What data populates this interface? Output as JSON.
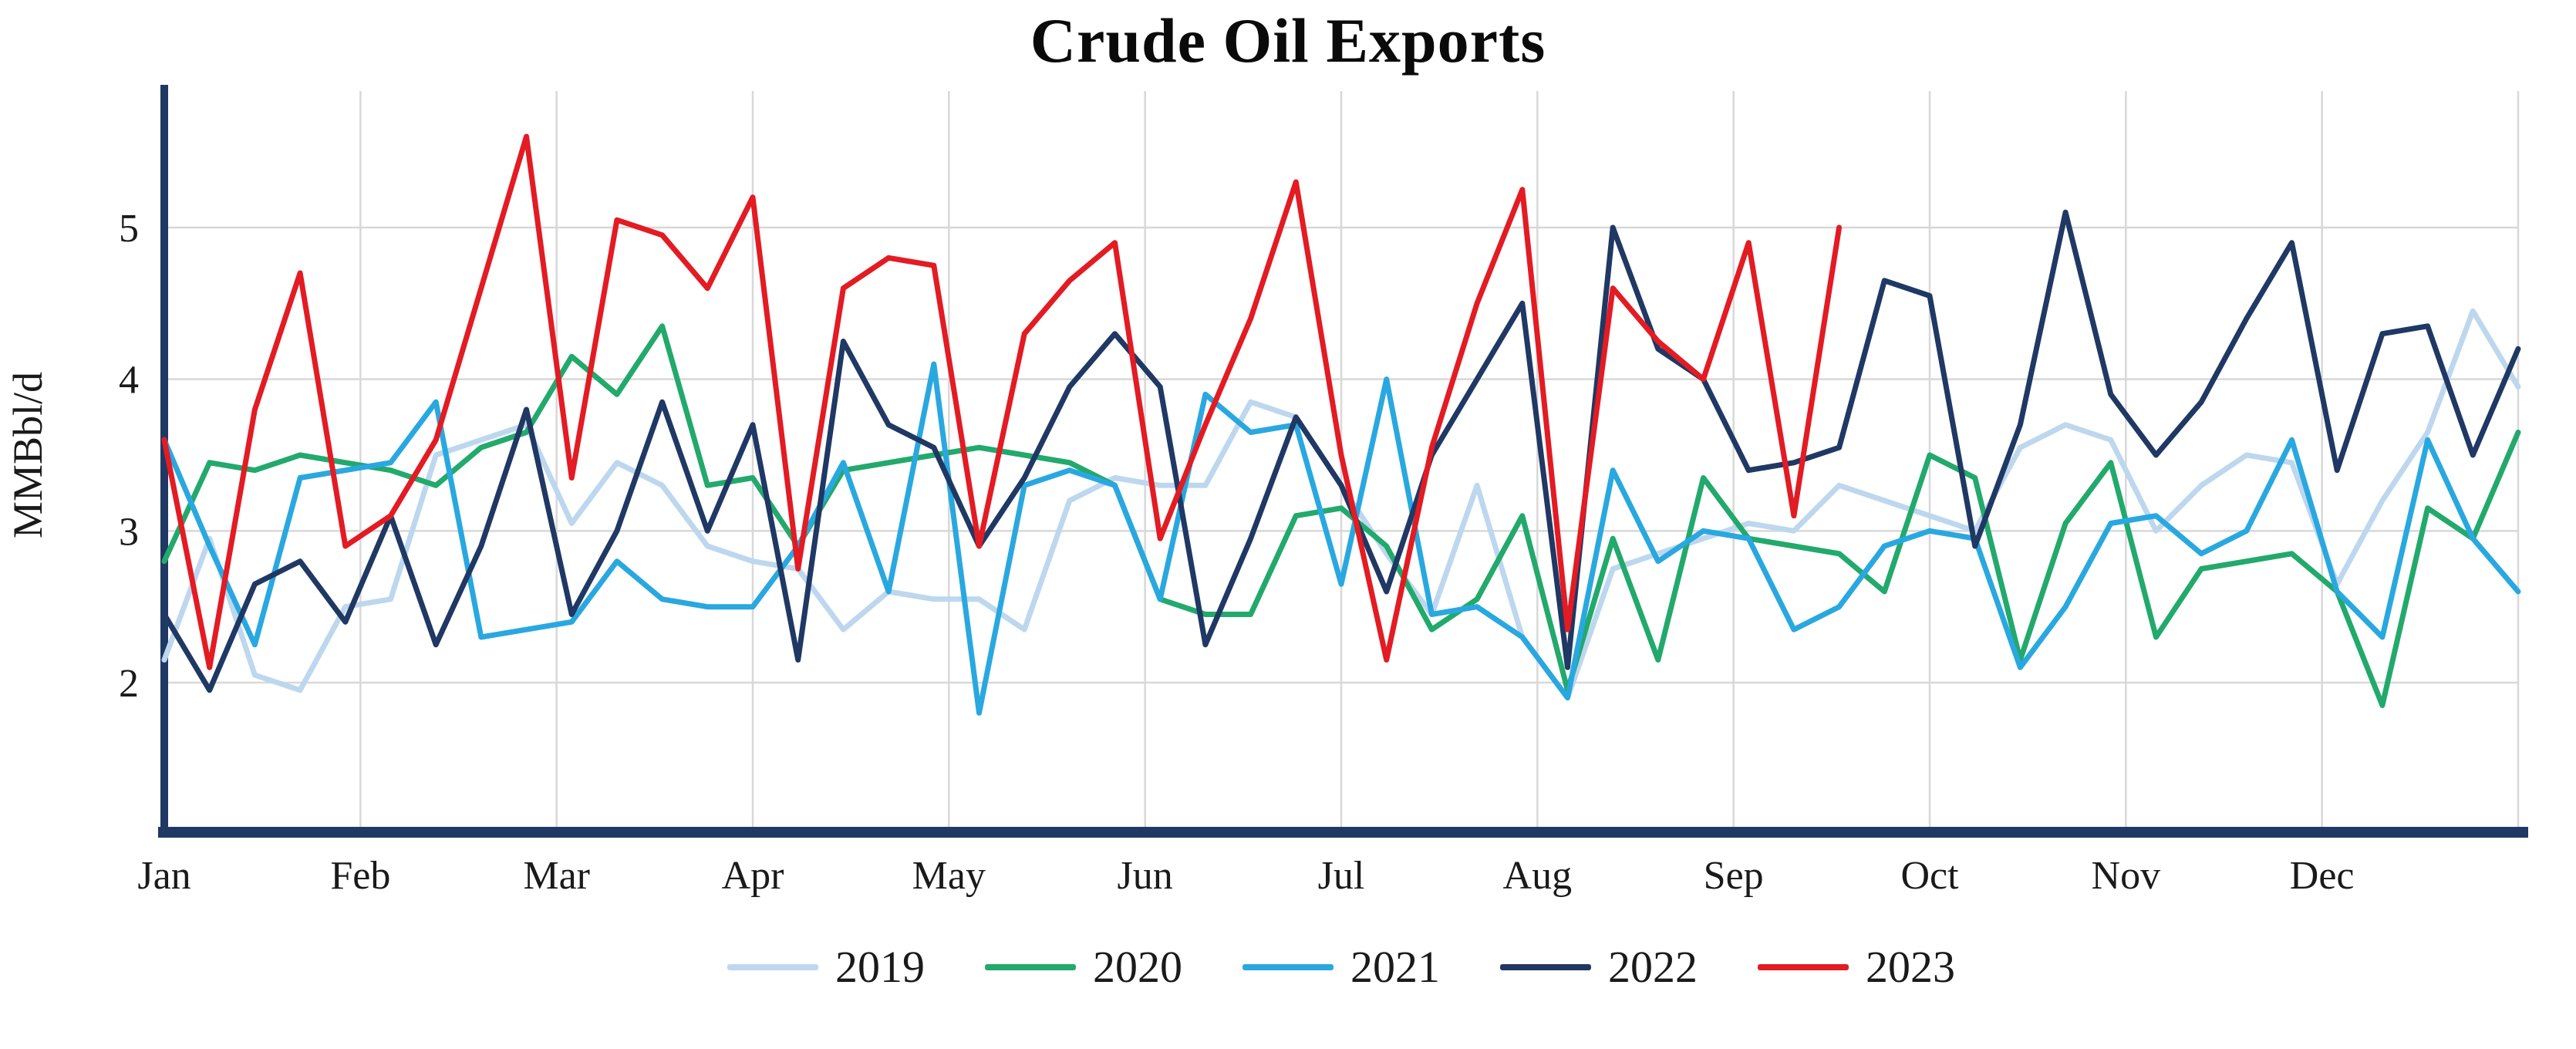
{
  "title": "Crude Oil Exports",
  "chart_data": {
    "type": "line",
    "title": "Crude Oil Exports",
    "xlabel": "",
    "ylabel": "MMBbl/d",
    "ylim": [
      1.8,
      5.9
    ],
    "yticks": [
      2,
      3,
      4,
      5
    ],
    "categories": [
      "Jan",
      "Feb",
      "Mar",
      "Apr",
      "May",
      "Jun",
      "Jul",
      "Aug",
      "Sep",
      "Oct",
      "Nov",
      "Dec"
    ],
    "x_unit": "week",
    "weeks_total": 53,
    "grid": true,
    "legend_position": "bottom",
    "axis_color": "#1f3864",
    "grid_color": "#d8d8d8",
    "series": [
      {
        "name": "2019",
        "color": "#bdd7ee",
        "values": [
          2.15,
          2.95,
          2.05,
          1.95,
          2.5,
          2.55,
          3.5,
          3.6,
          3.7,
          3.05,
          3.45,
          3.3,
          2.9,
          2.8,
          2.75,
          2.35,
          2.6,
          2.55,
          2.55,
          2.35,
          3.2,
          3.35,
          3.3,
          3.3,
          3.85,
          3.75,
          3.3,
          2.85,
          2.45,
          3.3,
          2.3,
          1.9,
          2.75,
          2.85,
          2.95,
          3.05,
          3.0,
          3.3,
          3.2,
          3.1,
          3.0,
          3.55,
          3.7,
          3.6,
          3.0,
          3.3,
          3.5,
          3.45,
          2.65,
          3.2,
          3.65,
          4.45,
          3.95
        ]
      },
      {
        "name": "2020",
        "color": "#22a96c",
        "values": [
          2.8,
          3.45,
          3.4,
          3.5,
          3.45,
          3.4,
          3.3,
          3.55,
          3.65,
          4.15,
          3.9,
          4.35,
          3.3,
          3.35,
          2.9,
          3.4,
          3.45,
          3.5,
          3.55,
          3.5,
          3.45,
          3.3,
          2.55,
          2.45,
          2.45,
          3.1,
          3.15,
          2.9,
          2.35,
          2.55,
          3.1,
          1.95,
          2.95,
          2.15,
          3.35,
          2.95,
          2.9,
          2.85,
          2.6,
          3.5,
          3.35,
          2.15,
          3.05,
          3.45,
          2.3,
          2.75,
          2.8,
          2.85,
          2.6,
          1.85,
          3.15,
          2.95,
          3.65
        ]
      },
      {
        "name": "2021",
        "color": "#29a8e0",
        "values": [
          3.6,
          2.9,
          2.25,
          3.35,
          3.4,
          3.45,
          3.85,
          2.3,
          2.35,
          2.4,
          2.8,
          2.55,
          2.5,
          2.5,
          2.9,
          3.45,
          2.6,
          4.1,
          1.8,
          3.3,
          3.4,
          3.3,
          2.55,
          3.9,
          3.65,
          3.7,
          2.65,
          4.0,
          2.45,
          2.5,
          2.3,
          1.9,
          3.4,
          2.8,
          3.0,
          2.95,
          2.35,
          2.5,
          2.9,
          3.0,
          2.95,
          2.1,
          2.5,
          3.05,
          3.1,
          2.85,
          3.0,
          3.6,
          2.6,
          2.3,
          3.6,
          2.95,
          2.6
        ]
      },
      {
        "name": "2022",
        "color": "#1f3864",
        "values": [
          2.45,
          1.95,
          2.65,
          2.8,
          2.4,
          3.1,
          2.25,
          2.9,
          3.8,
          2.45,
          3.0,
          3.85,
          3.0,
          3.7,
          2.15,
          4.25,
          3.7,
          3.55,
          2.9,
          3.35,
          3.95,
          4.3,
          3.95,
          2.25,
          2.95,
          3.75,
          3.3,
          2.6,
          3.5,
          4.0,
          4.5,
          2.1,
          5.0,
          4.2,
          4.0,
          3.4,
          3.45,
          3.55,
          4.65,
          4.55,
          2.9,
          3.7,
          5.1,
          3.9,
          3.5,
          3.85,
          4.4,
          4.9,
          3.4,
          4.3,
          4.35,
          3.5,
          4.2
        ]
      },
      {
        "name": "2023",
        "color": "#e31b23",
        "values": [
          3.6,
          2.1,
          3.8,
          4.7,
          2.9,
          3.1,
          3.6,
          4.6,
          5.6,
          3.35,
          5.05,
          4.95,
          4.6,
          5.2,
          2.75,
          4.6,
          4.8,
          4.75,
          2.9,
          4.3,
          4.65,
          4.9,
          2.95,
          3.7,
          4.4,
          5.3,
          3.5,
          2.15,
          3.55,
          4.5,
          5.25,
          2.35,
          4.6,
          4.25,
          4.0,
          4.9,
          3.1,
          5.0
        ]
      }
    ]
  }
}
